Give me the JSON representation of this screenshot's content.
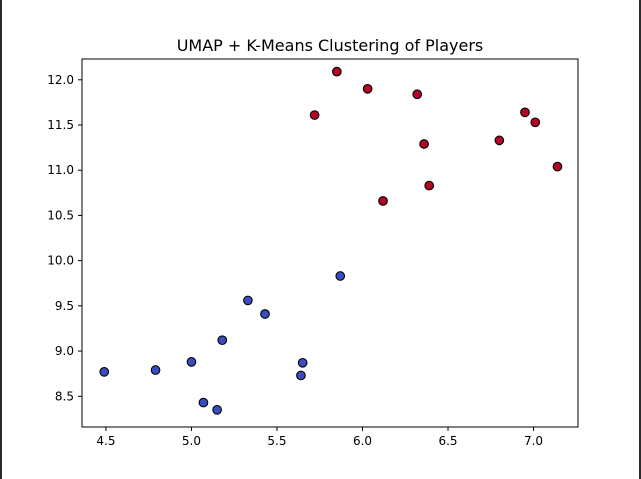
{
  "chart_data": {
    "type": "scatter",
    "title": "UMAP + K-Means Clustering of Players",
    "xlabel": "",
    "ylabel": "",
    "xlim": [
      4.36,
      7.26
    ],
    "ylim": [
      8.16,
      12.23
    ],
    "xticks": [
      4.5,
      5.0,
      5.5,
      6.0,
      6.5,
      7.0
    ],
    "xtick_labels": [
      "4.5",
      "5.0",
      "5.5",
      "6.0",
      "6.5",
      "7.0"
    ],
    "yticks": [
      8.5,
      9.0,
      9.5,
      10.0,
      10.5,
      11.0,
      11.5,
      12.0
    ],
    "ytick_labels": [
      "8.5",
      "9.0",
      "9.5",
      "10.0",
      "10.5",
      "11.0",
      "11.5",
      "12.0"
    ],
    "grid": false,
    "legend": "none",
    "colors": {
      "cluster_0": "#3b4cc0",
      "cluster_1": "#b40426",
      "edge": "#000000"
    },
    "series": [
      {
        "cluster": 0,
        "points": [
          {
            "x": 4.49,
            "y": 8.77
          },
          {
            "x": 4.79,
            "y": 8.79
          },
          {
            "x": 5.0,
            "y": 8.88
          },
          {
            "x": 5.07,
            "y": 8.43
          },
          {
            "x": 5.15,
            "y": 8.35
          },
          {
            "x": 5.18,
            "y": 9.12
          },
          {
            "x": 5.33,
            "y": 9.56
          },
          {
            "x": 5.43,
            "y": 9.41
          },
          {
            "x": 5.65,
            "y": 8.87
          },
          {
            "x": 5.64,
            "y": 8.73
          },
          {
            "x": 5.87,
            "y": 9.83
          }
        ]
      },
      {
        "cluster": 1,
        "points": [
          {
            "x": 5.72,
            "y": 11.61
          },
          {
            "x": 5.85,
            "y": 12.09
          },
          {
            "x": 6.03,
            "y": 11.9
          },
          {
            "x": 6.12,
            "y": 10.66
          },
          {
            "x": 6.32,
            "y": 11.84
          },
          {
            "x": 6.36,
            "y": 11.29
          },
          {
            "x": 6.39,
            "y": 10.83
          },
          {
            "x": 6.8,
            "y": 11.33
          },
          {
            "x": 6.95,
            "y": 11.64
          },
          {
            "x": 7.01,
            "y": 11.53
          },
          {
            "x": 7.14,
            "y": 11.04
          }
        ]
      }
    ]
  }
}
